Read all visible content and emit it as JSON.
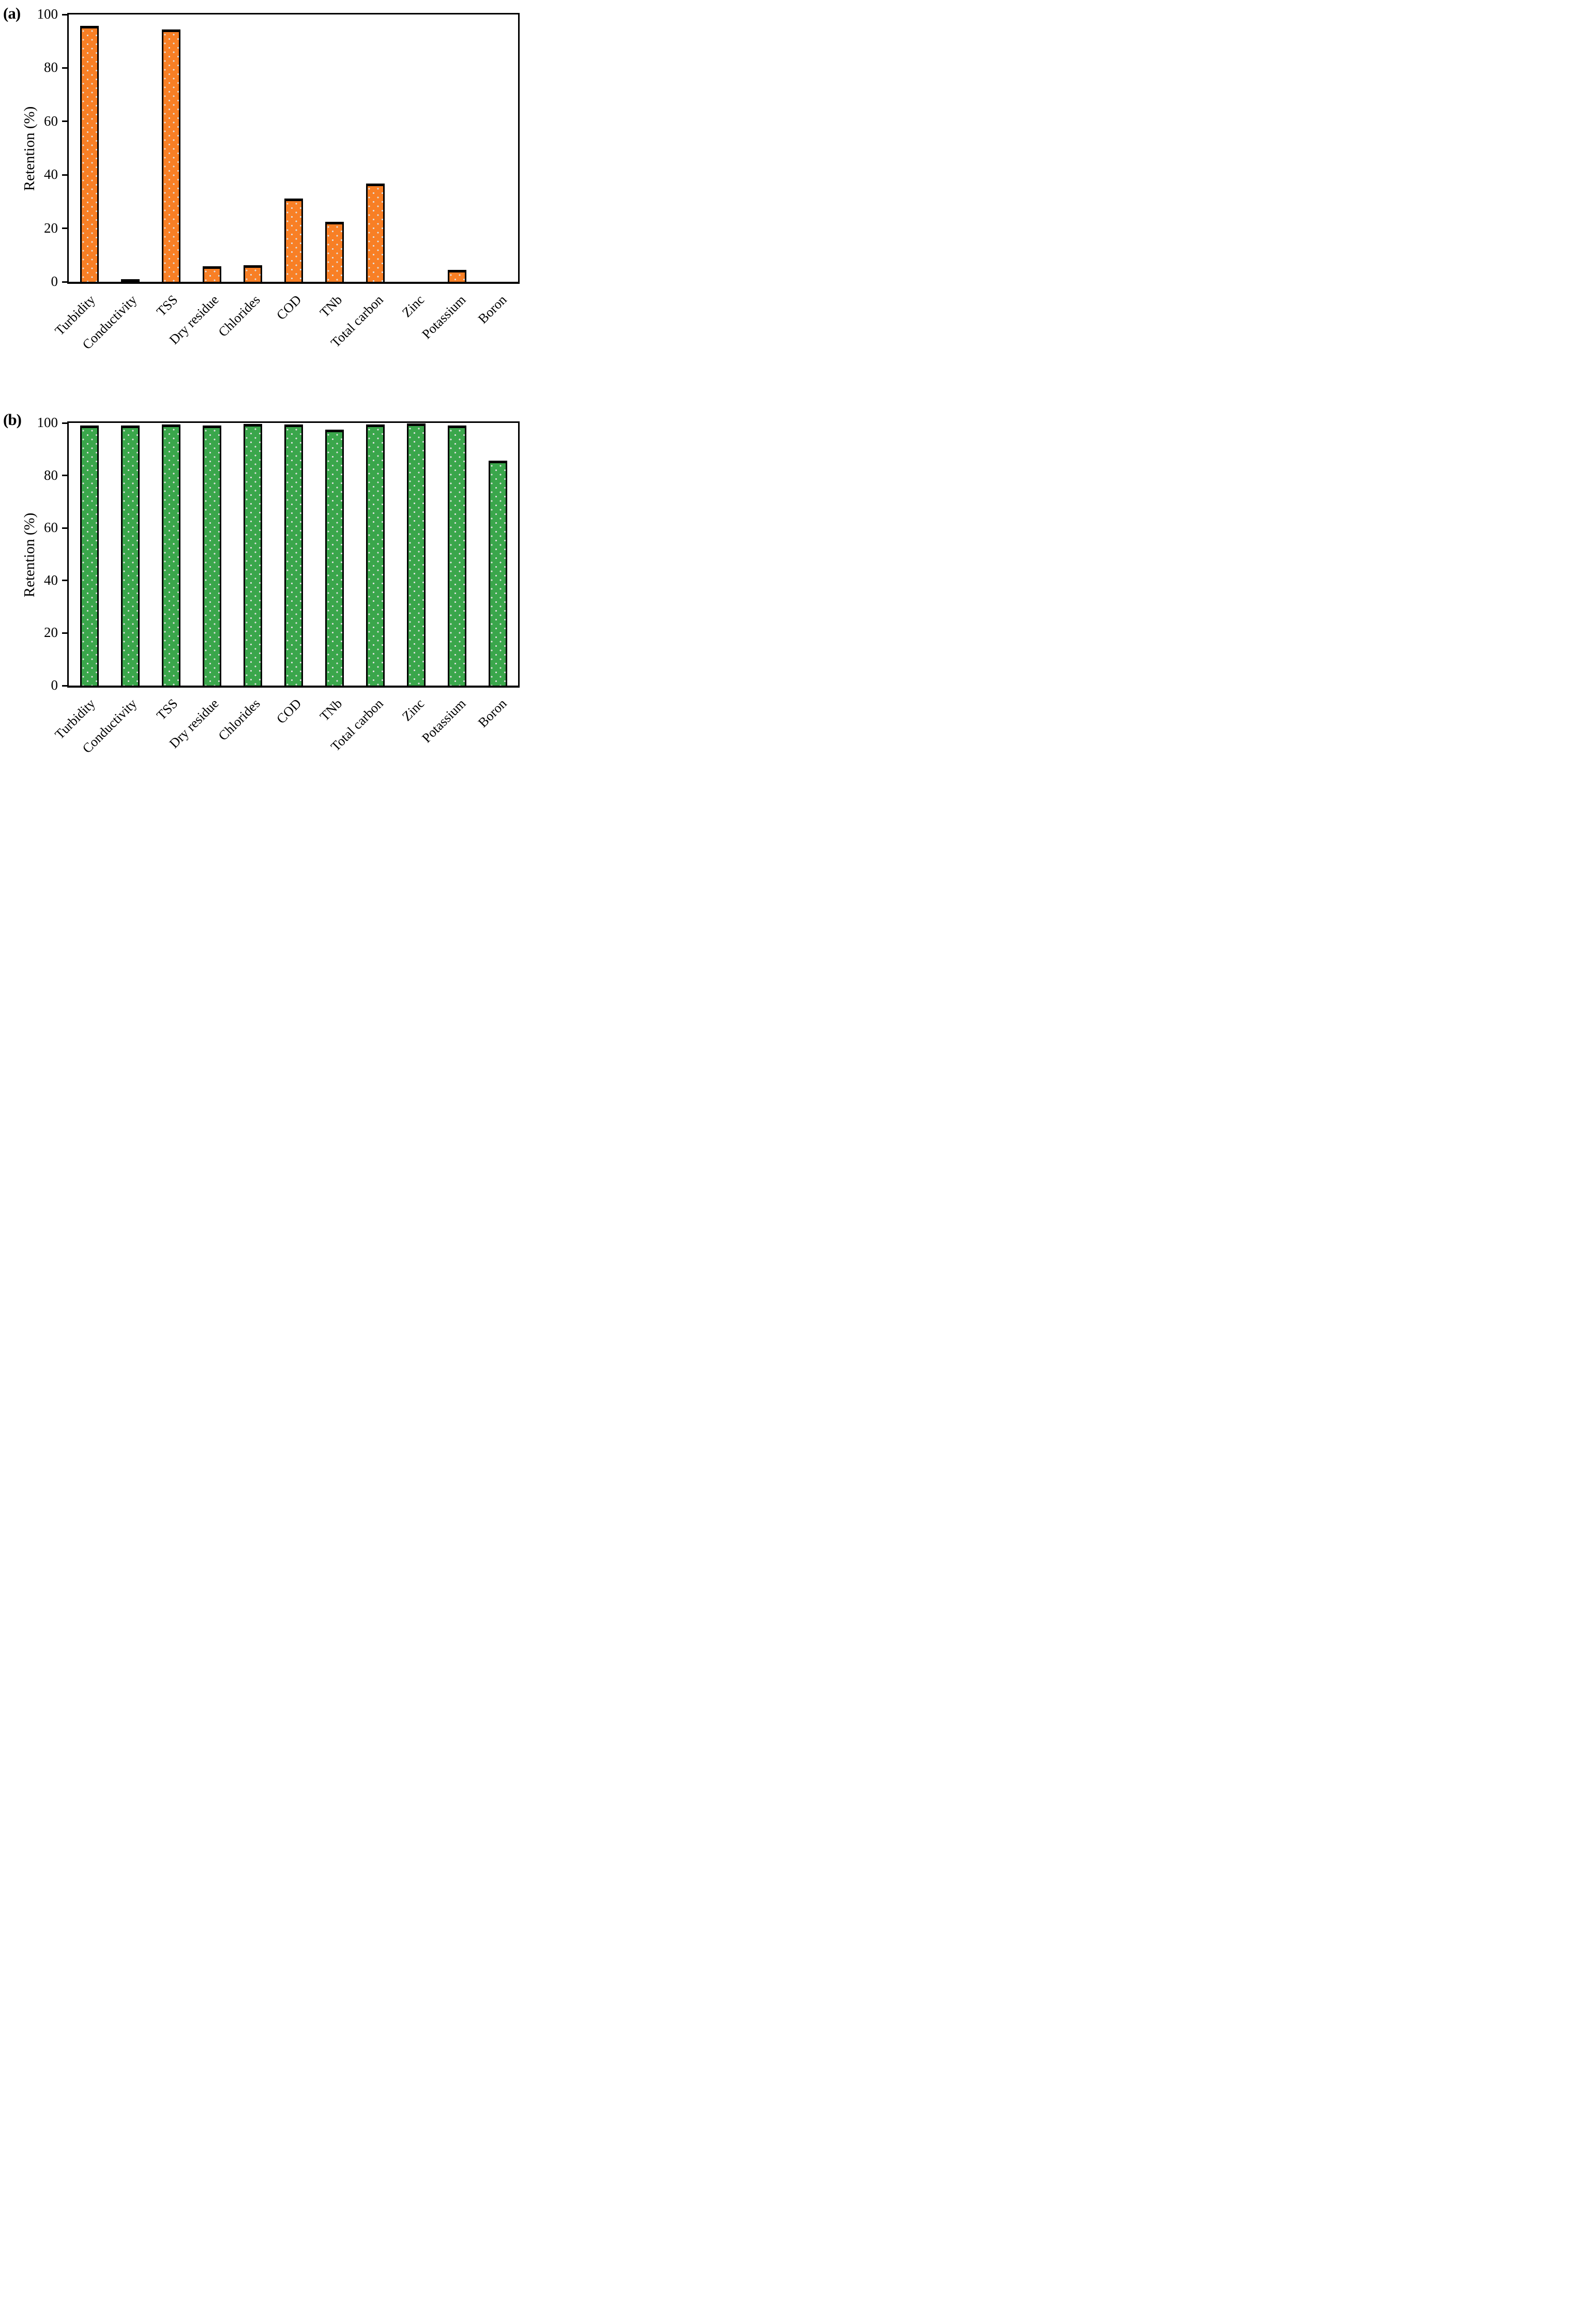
{
  "figure": {
    "background": "#ffffff",
    "axis_color": "#000000"
  },
  "chart_data": [
    {
      "type": "bar",
      "title": "(a)",
      "ylabel": "Retention (%)",
      "xlabel": "",
      "ylim": [
        0,
        100
      ],
      "yticks": [
        100,
        80,
        60,
        40,
        20,
        0
      ],
      "grid": false,
      "legend": "none",
      "bar_color": "#F87F25",
      "dot_color": "#E1E1E1",
      "categories": [
        "Turbidity",
        "Conductivity",
        "TSS",
        "Dry residue",
        "Chlorides",
        "COD",
        "TNb",
        "Total carbon",
        "Zinc",
        "Potassium",
        "Boron"
      ],
      "values": [
        95.7,
        0.8,
        94.3,
        5.8,
        6.1,
        31.2,
        22.4,
        36.8,
        0,
        4.4,
        0
      ]
    },
    {
      "type": "bar",
      "title": "(b)",
      "ylabel": "Retention (%)",
      "xlabel": "",
      "ylim": [
        0,
        100
      ],
      "yticks": [
        100,
        80,
        60,
        40,
        20,
        0
      ],
      "grid": false,
      "legend": "none",
      "bar_color": "#3AA64B",
      "dot_color": "#E1E1E1",
      "categories": [
        "Turbidity",
        "Conductivity",
        "TSS",
        "Dry residue",
        "Chlorides",
        "COD",
        "TNb",
        "Total carbon",
        "Zinc",
        "Potassium",
        "Boron"
      ],
      "values": [
        99.0,
        99.0,
        99.5,
        99.1,
        99.6,
        99.4,
        97.5,
        99.4,
        99.9,
        99.1,
        85.6
      ]
    }
  ]
}
